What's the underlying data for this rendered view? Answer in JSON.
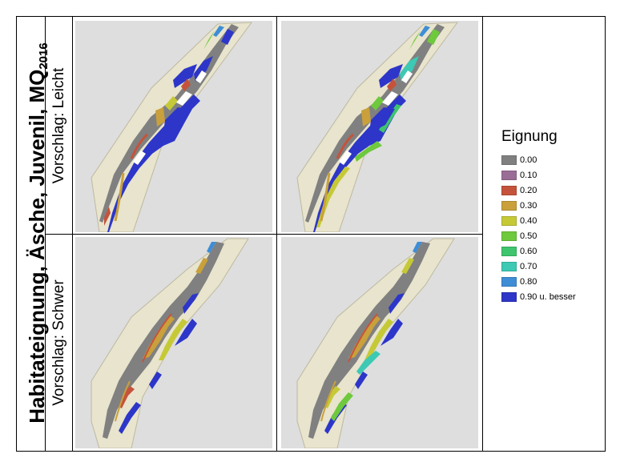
{
  "title": {
    "main": "Habitateignung, Äsche, Juvenil, MQ",
    "sub": "2016"
  },
  "rows": [
    {
      "label": "Vorschlag: Leicht"
    },
    {
      "label": "Vorschlag: Schwer"
    }
  ],
  "legend": {
    "title": "Eignung",
    "items": [
      {
        "label": "0.00",
        "color": "#808080"
      },
      {
        "label": "0.10",
        "color": "#9a6d97"
      },
      {
        "label": "0.20",
        "color": "#c5533b"
      },
      {
        "label": "0.30",
        "color": "#c9a03b"
      },
      {
        "label": "0.40",
        "color": "#c6c936"
      },
      {
        "label": "0.50",
        "color": "#6ec93d"
      },
      {
        "label": "0.60",
        "color": "#3ec56e"
      },
      {
        "label": "0.70",
        "color": "#3dc9b4"
      },
      {
        "label": "0.80",
        "color": "#3e8ed6"
      },
      {
        "label": "0.90 u. besser",
        "color": "#2d36c8"
      }
    ]
  }
}
